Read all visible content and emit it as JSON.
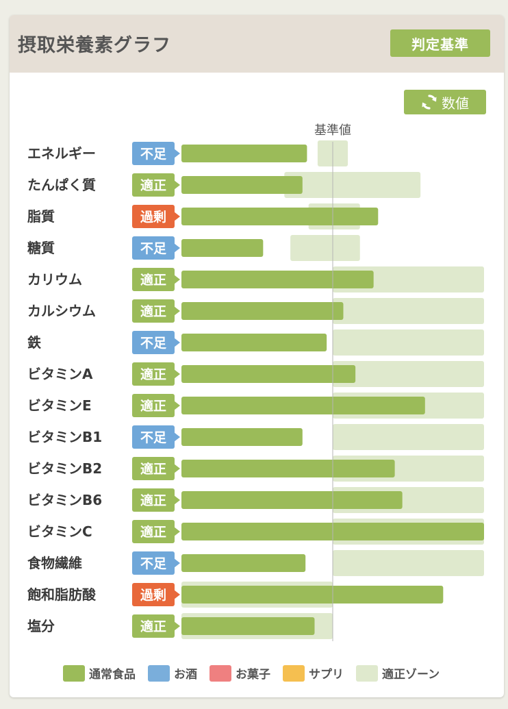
{
  "header": {
    "title": "摂取栄養素グラフ",
    "criteria_button": "判定基準"
  },
  "toolbar": {
    "value_button": "数値",
    "value_icon": "refresh-icon"
  },
  "colors": {
    "normal_food": "#9bbb59",
    "alcohol": "#7aaedb",
    "snacks": "#ef8080",
    "supplement": "#f5bf50",
    "zone": "#dfe9cd",
    "badge_low": "#6fa7d9",
    "badge_ok": "#9bbb59",
    "badge_over": "#e8683a"
  },
  "chart_data": {
    "type": "bar",
    "orientation": "horizontal",
    "reference_label": "基準値",
    "reference_value": 100,
    "xlim": [
      0,
      200
    ],
    "grid": false,
    "legend_position": "bottom",
    "status_labels": {
      "low": "不足",
      "ok": "適正",
      "over": "過剰"
    },
    "categories": [
      "エネルギー",
      "たんぱく質",
      "脂質",
      "糖質",
      "カリウム",
      "カルシウム",
      "鉄",
      "ビタミンA",
      "ビタミンE",
      "ビタミンB1",
      "ビタミンB2",
      "ビタミンB6",
      "ビタミンC",
      "食物繊維",
      "飽和脂肪酸",
      "塩分"
    ],
    "status": [
      "low",
      "ok",
      "over",
      "low",
      "ok",
      "ok",
      "low",
      "ok",
      "ok",
      "low",
      "ok",
      "ok",
      "ok",
      "low",
      "over",
      "ok"
    ],
    "values": [
      83,
      80,
      130,
      54,
      127,
      107,
      96,
      115,
      161,
      80,
      141,
      146,
      200,
      82,
      173,
      88
    ],
    "zones": [
      [
        90,
        110
      ],
      [
        68,
        158
      ],
      [
        84,
        118
      ],
      [
        72,
        118
      ],
      [
        100,
        200
      ],
      [
        100,
        200
      ],
      [
        100,
        200
      ],
      [
        100,
        200
      ],
      [
        100,
        200
      ],
      [
        100,
        200
      ],
      [
        100,
        200
      ],
      [
        100,
        200
      ],
      [
        100,
        200
      ],
      [
        100,
        200
      ],
      [
        0,
        100
      ],
      [
        0,
        100
      ]
    ],
    "series": [
      {
        "name": "通常食品",
        "color": "#9bbb59"
      },
      {
        "name": "お酒",
        "color": "#7aaedb"
      },
      {
        "name": "お菓子",
        "color": "#ef8080"
      },
      {
        "name": "サプリ",
        "color": "#f5bf50"
      },
      {
        "name": "適正ゾーン",
        "color": "#dfe9cd"
      }
    ]
  }
}
